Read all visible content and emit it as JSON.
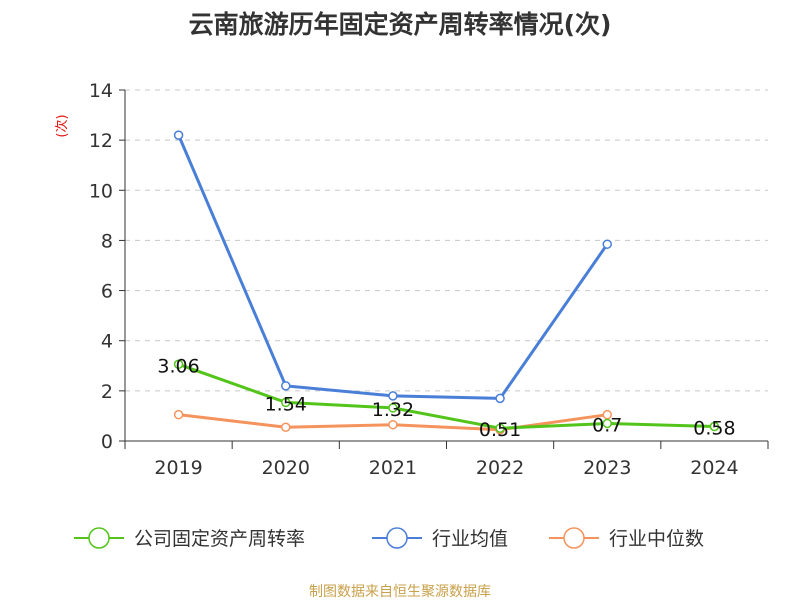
{
  "chart_data": {
    "type": "line",
    "title": "云南旅游历年固定资产周转率情况(次)",
    "unit_label": "(次)",
    "categories": [
      "2019",
      "2020",
      "2021",
      "2022",
      "2023",
      "2024"
    ],
    "ylim": [
      0,
      14
    ],
    "yticks": [
      0,
      2,
      4,
      6,
      8,
      10,
      12,
      14
    ],
    "grid": true,
    "legend_position": "bottom",
    "series": [
      {
        "name": "公司固定资产周转率",
        "color": "#52c41a",
        "values": [
          3.06,
          1.54,
          1.32,
          0.51,
          0.7,
          0.58
        ],
        "labels": [
          "3.06",
          "1.54",
          "1.32",
          "0.51",
          "0.7",
          "0.58"
        ]
      },
      {
        "name": "行业均值",
        "color": "#4a7fd8",
        "values": [
          12.2,
          2.2,
          1.8,
          1.7,
          7.85,
          null
        ]
      },
      {
        "name": "行业中位数",
        "color": "#f5935c",
        "values": [
          1.05,
          0.55,
          0.65,
          0.45,
          1.05,
          null
        ]
      }
    ]
  },
  "source": "制图数据来自恒生聚源数据库"
}
